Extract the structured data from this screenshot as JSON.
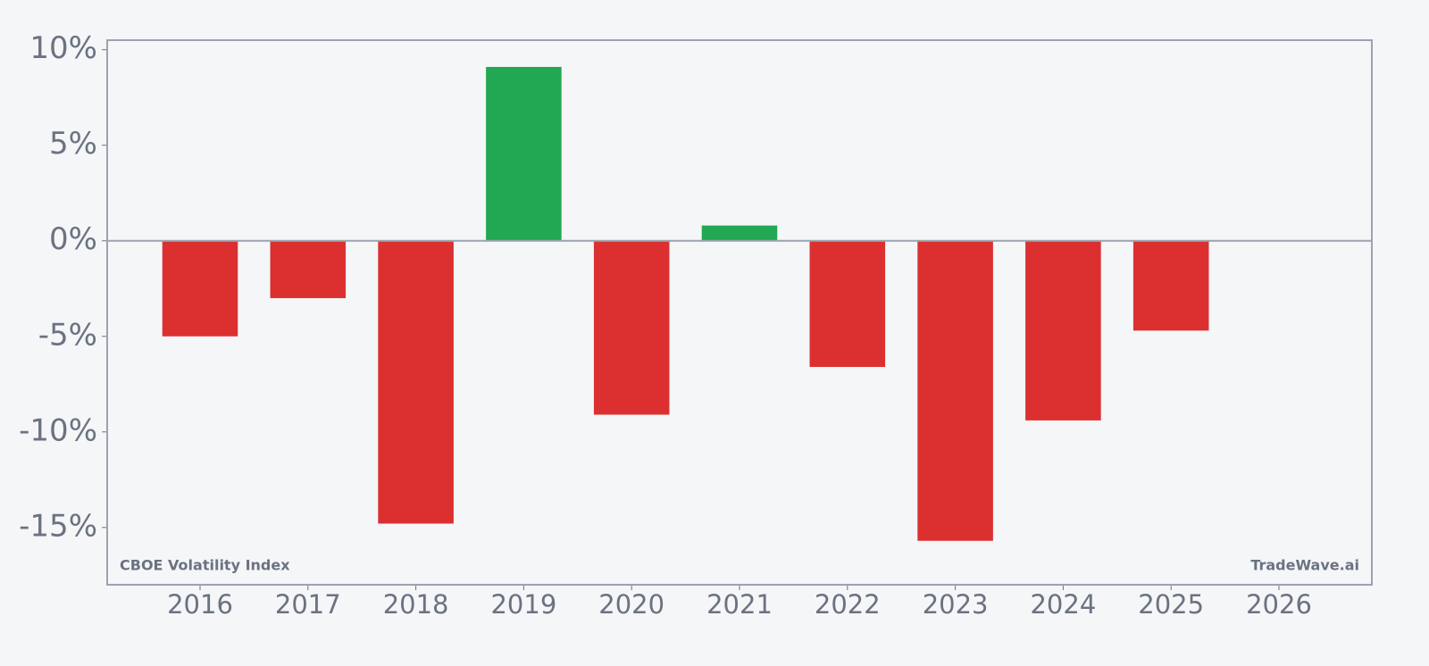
{
  "chart_data": {
    "type": "bar",
    "categories": [
      "2016",
      "2017",
      "2018",
      "2019",
      "2020",
      "2021",
      "2022",
      "2023",
      "2024",
      "2025",
      "2026"
    ],
    "values": [
      -5.0,
      -3.0,
      -14.8,
      9.1,
      -9.1,
      0.8,
      -6.6,
      -15.7,
      -9.4,
      -4.7,
      null
    ],
    "positive_color": "#22a852",
    "negative_color": "#dc3030",
    "ylim": [
      -18,
      10.5
    ],
    "yticks": [
      {
        "value": 10,
        "label": "10%"
      },
      {
        "value": 5,
        "label": "5%"
      },
      {
        "value": 0,
        "label": "0%"
      },
      {
        "value": -5,
        "label": "-5%"
      },
      {
        "value": -10,
        "label": "-10%"
      },
      {
        "value": -15,
        "label": "-15%"
      }
    ],
    "annotations": [
      "CBOE Volatility Index",
      "TradeWave.ai"
    ]
  }
}
